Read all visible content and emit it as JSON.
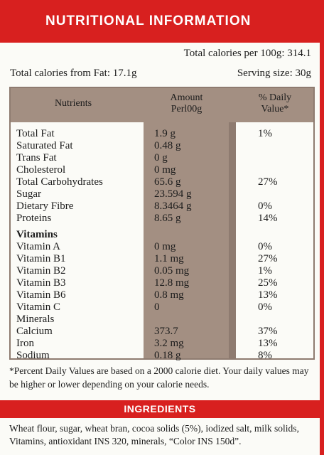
{
  "header": {
    "title": "NUTRITIONAL INFORMATION"
  },
  "summary": {
    "calories_per_100g": "Total calories per 100g: 314.1",
    "calories_from_fat": "Total calories from Fat: 17.1g",
    "serving_size": "Serving size: 30g"
  },
  "table": {
    "columns": [
      "Nutrients",
      "Amount\nPerl00g",
      "% Daily\nValue*"
    ],
    "rows": [
      {
        "nutrient": "Total Fat",
        "amount": "1.9 g",
        "daily_value": "1%"
      },
      {
        "nutrient": "Saturated Fat",
        "amount": "0.48 g"
      },
      {
        "nutrient": "Trans Fat",
        "amount": "0 g"
      },
      {
        "nutrient": "Cholesterol",
        "amount": "0 mg"
      },
      {
        "nutrient": "Total Carbohydrates",
        "amount": "65.6 g",
        "daily_value": "27%"
      },
      {
        "nutrient": "Sugar",
        "amount": "23.594 g"
      },
      {
        "nutrient": "Dietary Fibre",
        "amount": "8.3464 g",
        "daily_value": "0%"
      },
      {
        "nutrient": "Proteins",
        "amount": "8.65 g",
        "daily_value": "14%"
      },
      {
        "nutrient": "Vitamins",
        "heading": true
      },
      {
        "nutrient": "Vitamin A",
        "amount": "0 mg",
        "daily_value": "0%"
      },
      {
        "nutrient": "Vitamin B1",
        "amount": "1.1 mg",
        "daily_value": "27%"
      },
      {
        "nutrient": "Vitamin B2",
        "amount": "0.05 mg",
        "daily_value": "1%"
      },
      {
        "nutrient": "Vitamin B3",
        "amount": "12.8 mg",
        "daily_value": "25%"
      },
      {
        "nutrient": "Vitamin B6",
        "amount": "0.8 mg",
        "daily_value": "13%"
      },
      {
        "nutrient": "Vitamin C",
        "amount": "0",
        "daily_value": "0%"
      },
      {
        "nutrient": "Minerals"
      },
      {
        "nutrient": "Calcium",
        "amount": "373.7",
        "daily_value": "37%"
      },
      {
        "nutrient": "Iron",
        "amount": "3.2 mg",
        "daily_value": "13%"
      },
      {
        "nutrient": "Sodium",
        "amount": "0.18 g",
        "daily_value": "8%"
      }
    ]
  },
  "footnote": "*Percent Daily Values are based on a 2000 calorie diet. Your daily values may be higher or lower depending on your calorie needs.",
  "ingredients": {
    "title": "INGREDIENTS",
    "text": "Wheat flour, sugar, wheat bran, cocoa solids (5%), iodized salt, milk solids, Vitamins, antioxidant INS 320, minerals, “Color INS 150d”."
  }
}
